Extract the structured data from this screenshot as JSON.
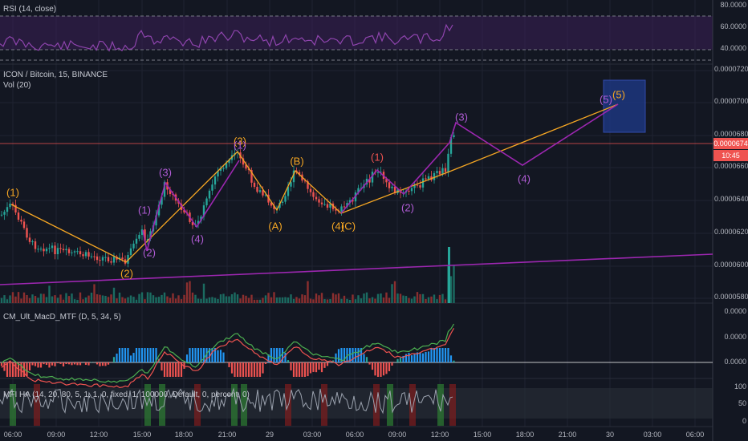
{
  "rsi": {
    "title": "RSI (14, close)",
    "levels": [
      "80.0000",
      "60.0000",
      "40.0000"
    ]
  },
  "main": {
    "title": "ICON / Bitcoin, 15, BINANCE",
    "volume_label": "Vol (20)",
    "y_ticks": [
      "0.0000720",
      "0.0000700",
      "0.0000680",
      "0.0000660",
      "0.0000640",
      "0.0000620",
      "0.0000600",
      "0.0000580"
    ],
    "price_tag": "0.0000674",
    "time_tag": "10:45",
    "wave_labels_orange": [
      "(1)",
      "(2)",
      "(3)",
      "(A)",
      "(B)",
      "(4)",
      "(C)"
    ],
    "wave_labels_purple": [
      "(1)",
      "(2)",
      "(3)",
      "(4)",
      "(1)",
      "(2)",
      "(3)",
      "(4)",
      "(5)"
    ],
    "wave_label_orange_5": "(5)",
    "wave_label_red_1": "(1)"
  },
  "macd": {
    "title": "CM_Ult_MacD_MTF (D, 5, 34, 5)",
    "y_ticks": [
      "0.0000",
      "0.0000",
      "0.0000"
    ]
  },
  "mfi": {
    "title": "MFI HA (14, 20, 80, 5, 1, 1, 0, fixed, 1, 100000, Default, 0, percent, 0)",
    "y_ticks": [
      "100",
      "50",
      "0"
    ]
  },
  "x_axis": {
    "ticks": [
      "06:00",
      "09:00",
      "12:00",
      "15:00",
      "18:00",
      "21:00",
      "29",
      "03:00",
      "06:00",
      "09:00",
      "12:00",
      "15:00",
      "18:00",
      "21:00",
      "30",
      "03:00",
      "06:00"
    ]
  },
  "colors": {
    "background": "#131722",
    "up": "#26a69a",
    "down": "#ef5350",
    "orange": "#f5a623",
    "purple": "#9c27b0",
    "rsi_line": "#8e44ad",
    "target_box": "#1e3a8a"
  }
}
